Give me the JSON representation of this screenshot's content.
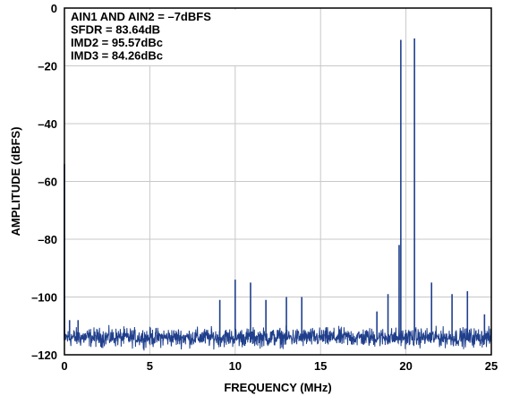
{
  "chart_data": {
    "type": "line",
    "title": "",
    "xlabel": "FREQUENCY (MHz)",
    "ylabel": "AMPLITUDE (dBFS)",
    "xlim": [
      0,
      25
    ],
    "ylim": [
      -120,
      0
    ],
    "x_ticks": [
      "0",
      "5",
      "10",
      "15",
      "20",
      "25"
    ],
    "y_ticks": [
      "0",
      "–20",
      "–40",
      "–60",
      "–80",
      "–100",
      "–120"
    ],
    "grid": true,
    "annotations": [
      "AIN1 AND AIN2 = –7dBFS",
      "SFDR = 83.64dB",
      "IMD2 = 95.57dBc",
      "IMD3 = 84.26dBc"
    ],
    "noise_floor_dbfs": -114,
    "series": [
      {
        "color": "#1f3f8c",
        "spurs": [
          {
            "x": 0.0,
            "y": -54
          },
          {
            "x": 0.3,
            "y": -108
          },
          {
            "x": 0.8,
            "y": -108
          },
          {
            "x": 9.1,
            "y": -101
          },
          {
            "x": 10.0,
            "y": -94
          },
          {
            "x": 10.9,
            "y": -95
          },
          {
            "x": 11.8,
            "y": -101
          },
          {
            "x": 13.0,
            "y": -100
          },
          {
            "x": 13.9,
            "y": -100
          },
          {
            "x": 18.3,
            "y": -105
          },
          {
            "x": 18.95,
            "y": -99
          },
          {
            "x": 19.6,
            "y": -82
          },
          {
            "x": 19.7,
            "y": -11
          },
          {
            "x": 20.5,
            "y": -10.5
          },
          {
            "x": 21.5,
            "y": -95
          },
          {
            "x": 22.7,
            "y": -99
          },
          {
            "x": 23.6,
            "y": -98
          },
          {
            "x": 24.6,
            "y": -106
          }
        ]
      }
    ]
  }
}
